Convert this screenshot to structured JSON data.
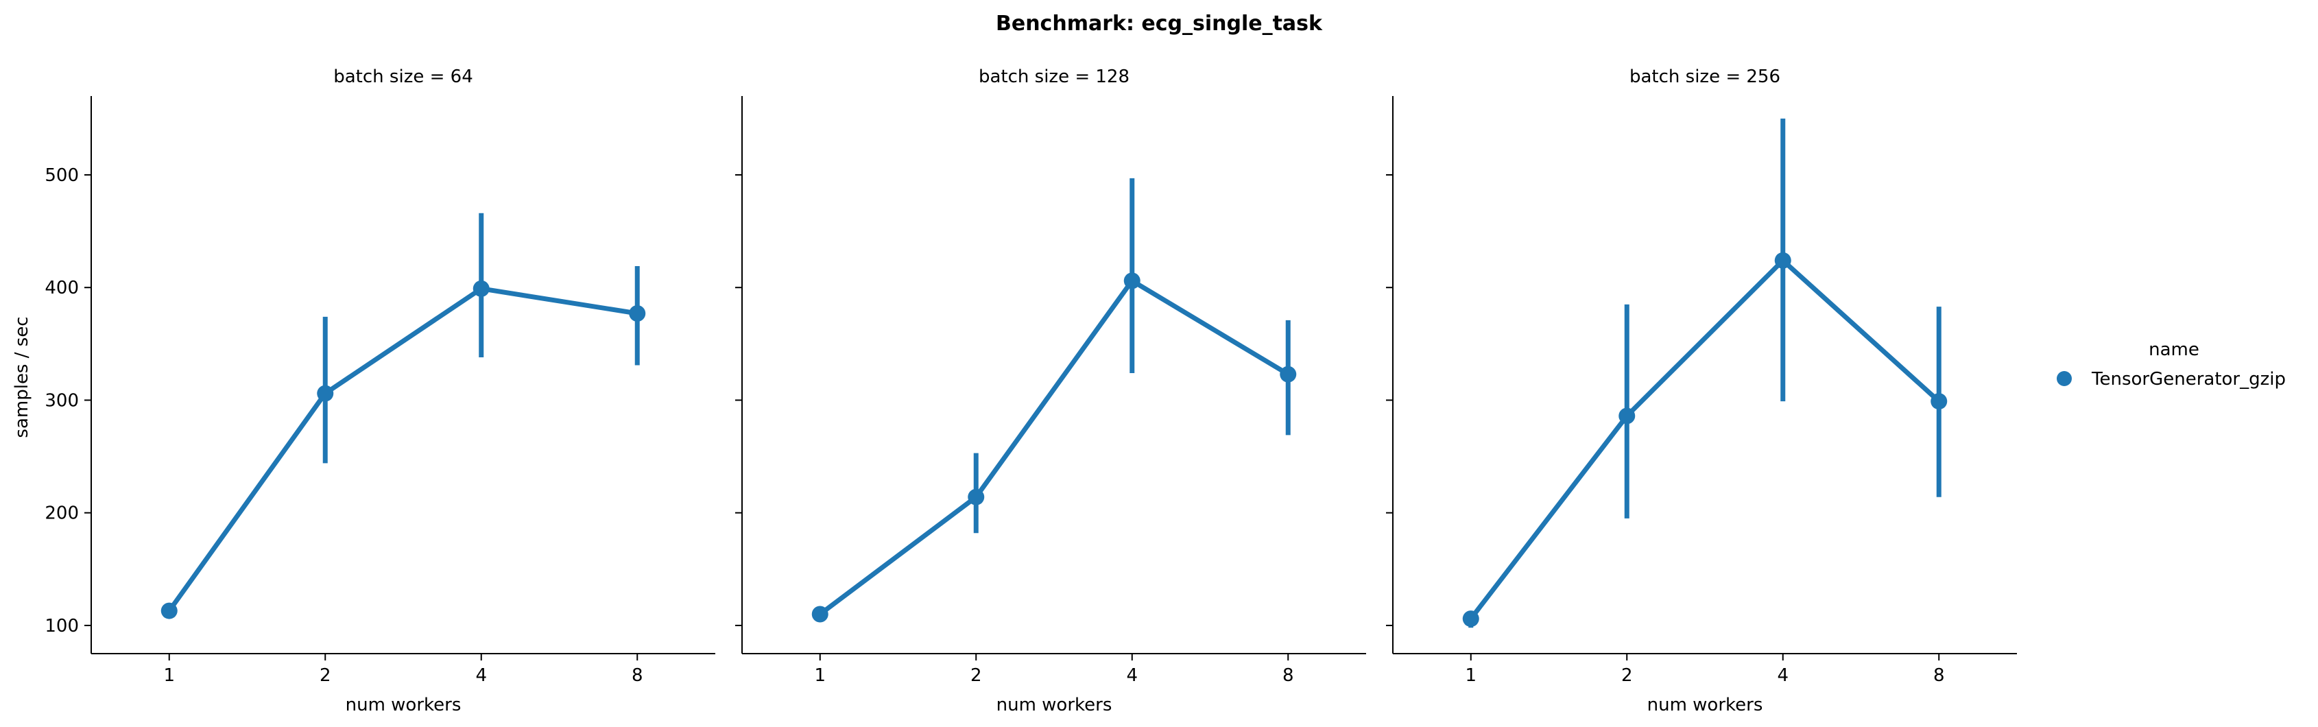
{
  "chart_data": {
    "type": "line",
    "title": "Benchmark: ecg_single_task",
    "ylabel": "samples / sec",
    "xlabel": "num workers",
    "categories": [
      "1",
      "2",
      "4",
      "8"
    ],
    "ylim": [
      75,
      570
    ],
    "yticks": [
      100,
      200,
      300,
      400,
      500
    ],
    "grid": false,
    "legend": {
      "title": "name",
      "entries": [
        "TensorGenerator_gzip"
      ],
      "placement": "right"
    },
    "colors": {
      "series": "#1f77b4"
    },
    "panels": [
      {
        "title": "batch size = 64",
        "series": [
          {
            "name": "TensorGenerator_gzip",
            "values": [
              113,
              306,
              399,
              377
            ],
            "ci_low": [
              108,
              244,
              338,
              331
            ],
            "ci_high": [
              118,
              374,
              466,
              419
            ]
          }
        ]
      },
      {
        "title": "batch size = 128",
        "series": [
          {
            "name": "TensorGenerator_gzip",
            "values": [
              110,
              214,
              406,
              323
            ],
            "ci_low": [
              106,
              182,
              324,
              269
            ],
            "ci_high": [
              114,
              253,
              497,
              371
            ]
          }
        ]
      },
      {
        "title": "batch size = 256",
        "series": [
          {
            "name": "TensorGenerator_gzip",
            "values": [
              106,
              286,
              424,
              299
            ],
            "ci_low": [
              98,
              195,
              299,
              214
            ],
            "ci_high": [
              113,
              385,
              550,
              383
            ]
          }
        ]
      }
    ]
  }
}
